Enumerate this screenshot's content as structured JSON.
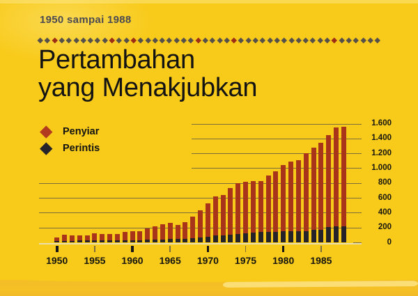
{
  "page": {
    "subtitle": "1950 sampai 1988",
    "title_line1": "Pertambahan",
    "title_line2": "yang Menakjubkan"
  },
  "legend": [
    {
      "label": "Penyiar",
      "color": "#b23a1e"
    },
    {
      "label": "Perintis",
      "color": "#26232b"
    }
  ],
  "decoration": {
    "diamond_count": 48,
    "red_indices": [
      3,
      11,
      14,
      23,
      28,
      42
    ],
    "gray_color": "#56504b",
    "red_color": "#9e2d15"
  },
  "colors": {
    "background": "#f8ca1a",
    "bar_red": "#a83419",
    "bar_black": "#25222a",
    "grid": "#7c6d3c",
    "baseline": "#ecdfae"
  },
  "chart_data": {
    "type": "bar",
    "title": "Pertambahan yang Menakjubkan",
    "subtitle": "1950 sampai 1988",
    "stacking": "overlay (black Perintis bars drawn in front of red Penyiar bars)",
    "grid": "horizontal",
    "legend_position": "top-left",
    "ylim": [
      0,
      1600
    ],
    "ytick_values": [
      0,
      200,
      400,
      600,
      800,
      1000,
      1200,
      1400,
      1600
    ],
    "ytick_labels": [
      "0",
      "200",
      "400",
      "600",
      "800",
      "1.000",
      "1.200",
      "1.400",
      "1.600"
    ],
    "xtick_major_years": [
      1950,
      1960,
      1970,
      1980
    ],
    "xtick_minor_years": [
      1955,
      1965,
      1975,
      1985
    ],
    "xtick_labels": [
      "1950",
      "1955",
      "1960",
      "1965",
      "1970",
      "1975",
      "1980",
      "1985"
    ],
    "x": [
      1950,
      1951,
      1952,
      1953,
      1954,
      1955,
      1956,
      1957,
      1958,
      1959,
      1960,
      1961,
      1962,
      1963,
      1964,
      1965,
      1966,
      1967,
      1968,
      1969,
      1970,
      1971,
      1972,
      1973,
      1974,
      1975,
      1976,
      1977,
      1978,
      1979,
      1980,
      1981,
      1982,
      1983,
      1984,
      1985,
      1986,
      1987,
      1988
    ],
    "series": [
      {
        "name": "Penyiar",
        "color": "#a83419",
        "values": [
          65,
          100,
          90,
          95,
          95,
          120,
          110,
          110,
          110,
          145,
          155,
          155,
          190,
          215,
          245,
          265,
          235,
          270,
          345,
          435,
          525,
          620,
          635,
          730,
          800,
          820,
          825,
          825,
          900,
          955,
          1045,
          1090,
          1110,
          1200,
          1280,
          1345,
          1445,
          1545,
          1555
        ]
      },
      {
        "name": "Perintis",
        "color": "#25222a",
        "values": [
          20,
          22,
          22,
          24,
          24,
          26,
          26,
          28,
          28,
          30,
          32,
          32,
          34,
          36,
          40,
          45,
          45,
          50,
          60,
          70,
          80,
          90,
          95,
          100,
          110,
          120,
          135,
          140,
          140,
          140,
          150,
          150,
          150,
          150,
          165,
          165,
          205,
          220,
          220
        ]
      }
    ]
  }
}
